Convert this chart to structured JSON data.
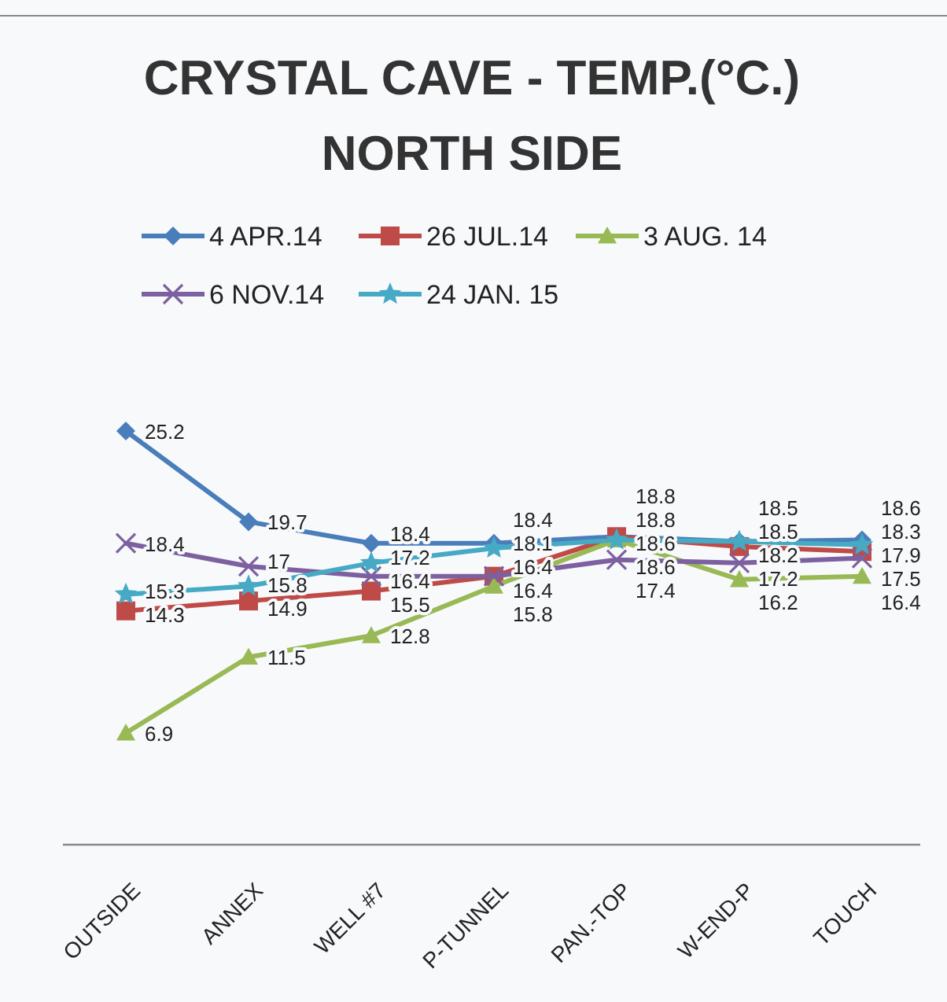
{
  "chart_data": {
    "type": "line",
    "title": "CRYSTAL CAVE - TEMP.(°C.)",
    "subtitle": "NORTH SIDE",
    "categories": [
      "OUTSIDE",
      "ANNEX",
      "WELL #7",
      "P-TUNNEL",
      "PAN.-TOP",
      "W-END-P",
      "TOUCH"
    ],
    "series": [
      {
        "name": "4 APR.14",
        "color": "#4a7ebb",
        "marker": "diamond",
        "values": [
          25.2,
          19.7,
          18.4,
          18.4,
          18.8,
          18.5,
          18.6
        ]
      },
      {
        "name": "26 JUL.14",
        "color": "#be4b48",
        "marker": "square",
        "values": [
          14.3,
          14.9,
          15.5,
          16.4,
          18.8,
          18.2,
          17.9
        ]
      },
      {
        "name": "3 AUG. 14",
        "color": "#98b954",
        "marker": "triangle",
        "values": [
          6.9,
          11.5,
          12.8,
          15.8,
          18.6,
          16.2,
          16.4
        ]
      },
      {
        "name": "6 NOV.14",
        "color": "#7d60a0",
        "marker": "cross",
        "values": [
          18.4,
          17,
          16.4,
          16.4,
          17.4,
          17.2,
          17.5
        ]
      },
      {
        "name": "24 JAN. 15",
        "color": "#46aac5",
        "marker": "star",
        "values": [
          15.3,
          15.8,
          17.2,
          18.1,
          18.6,
          18.5,
          18.3
        ]
      }
    ],
    "data_labels": true,
    "legend": "top",
    "grid": false
  }
}
